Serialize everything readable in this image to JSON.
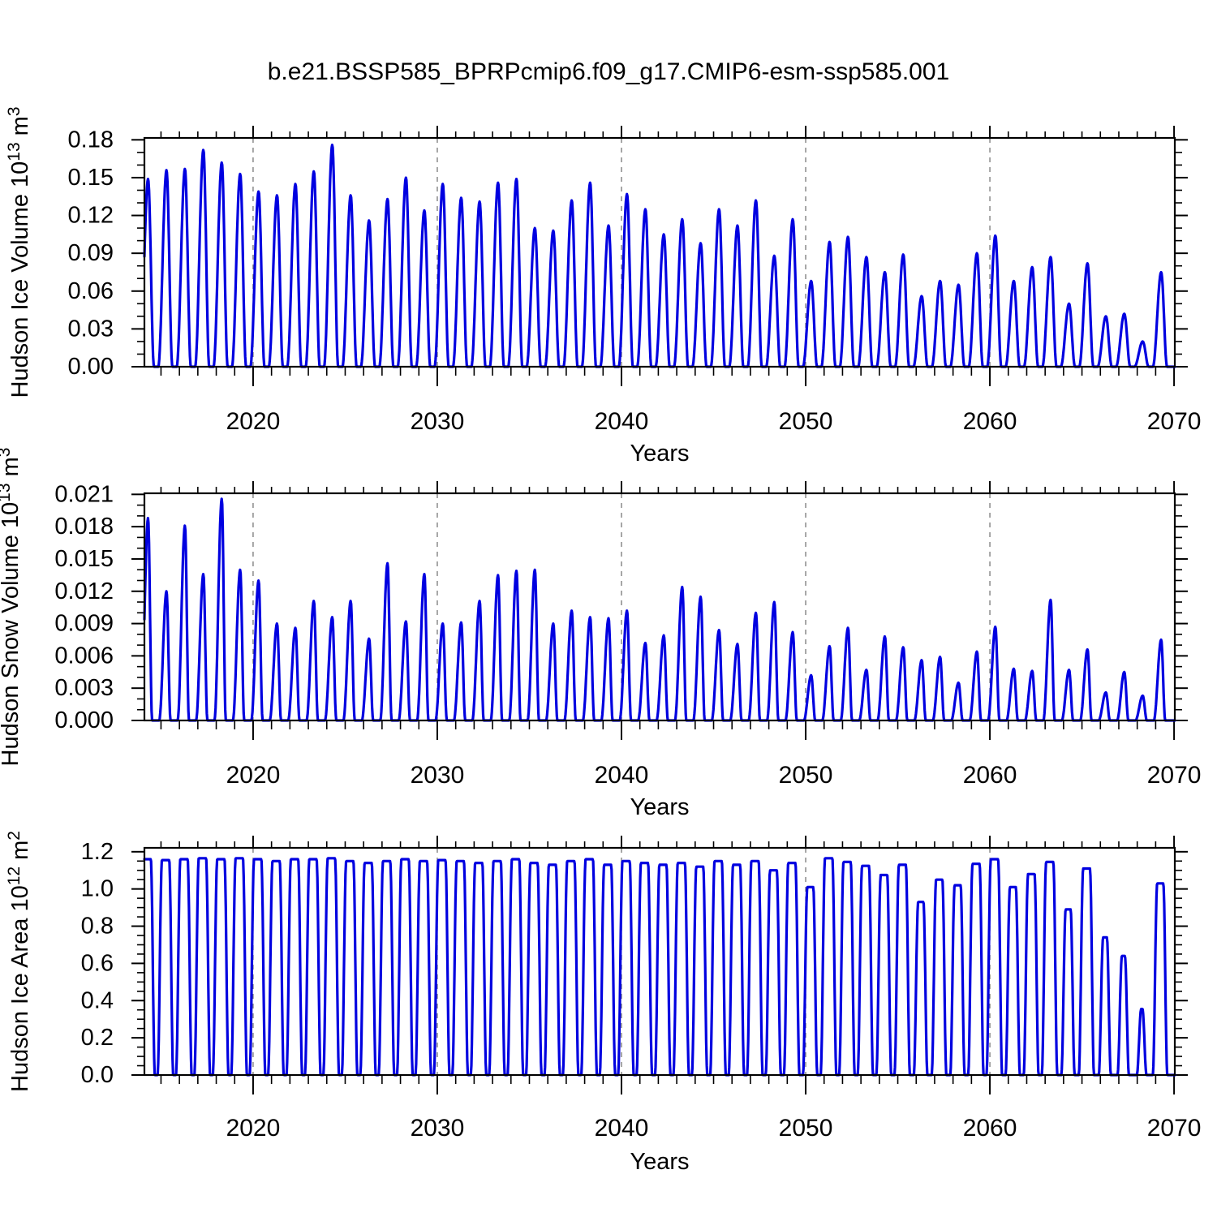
{
  "title": "b.e21.BSSP585_BPRPcmip6.f09_g17.CMIP6-esm-ssp585.001",
  "background": "#ffffff",
  "line_color": "#0000e0",
  "grid_color": "#777777",
  "axis_color": "#000000",
  "chart_data": [
    {
      "type": "line",
      "name": "hudson-ice-volume",
      "ylabel_text": "Hudson Ice Volume 10^13 m^3",
      "ylabel_segments": [
        {
          "t": "Hudson Ice Volume 10"
        },
        {
          "t": "13",
          "sup": true
        },
        {
          "t": " m"
        },
        {
          "t": "3",
          "sup": true
        }
      ],
      "xlabel": "Years",
      "x_major_ticks": [
        2020,
        2030,
        2040,
        2050,
        2060,
        2070
      ],
      "x_grid_years": [
        2020,
        2030,
        2040,
        2050,
        2060
      ],
      "xlim": [
        2014.1,
        2070.04
      ],
      "ylim": [
        0,
        0.1815
      ],
      "y_major_ticks": [
        0,
        0.03,
        0.06,
        0.09,
        0.12,
        0.15,
        0.18
      ],
      "y_tick_labels": [
        "0.00",
        "0.03",
        "0.06",
        "0.09",
        "0.12",
        "0.15",
        "0.18"
      ],
      "y_minor_step": 0.01,
      "seasonal": {
        "profile": "volume",
        "rise": 0.45,
        "fall": 0.32,
        "peak_center": 0.3
      },
      "peaks_start_year": 2014,
      "annual_peaks": [
        0.149,
        0.156,
        0.157,
        0.172,
        0.162,
        0.153,
        0.139,
        0.136,
        0.145,
        0.155,
        0.176,
        0.136,
        0.116,
        0.133,
        0.15,
        0.124,
        0.145,
        0.134,
        0.131,
        0.146,
        0.149,
        0.11,
        0.108,
        0.132,
        0.146,
        0.112,
        0.137,
        0.125,
        0.105,
        0.117,
        0.098,
        0.125,
        0.112,
        0.132,
        0.088,
        0.117,
        0.068,
        0.099,
        0.103,
        0.087,
        0.075,
        0.089,
        0.056,
        0.068,
        0.065,
        0.09,
        0.104,
        0.068,
        0.079,
        0.087,
        0.05,
        0.082,
        0.04,
        0.042,
        0.02,
        0.075
      ]
    },
    {
      "type": "line",
      "name": "hudson-snow-volume",
      "ylabel_text": "Hudson Snow Volume 10^13 m^3",
      "ylabel_segments": [
        {
          "t": "Hudson Snow Volume 10"
        },
        {
          "t": "13",
          "sup": true
        },
        {
          "t": " m"
        },
        {
          "t": "3",
          "sup": true
        }
      ],
      "xlabel": "Years",
      "x_major_ticks": [
        2020,
        2030,
        2040,
        2050,
        2060,
        2070
      ],
      "x_grid_years": [
        2020,
        2030,
        2040,
        2050,
        2060
      ],
      "xlim": [
        2014.1,
        2070.04
      ],
      "ylim": [
        0,
        0.0211
      ],
      "y_major_ticks": [
        0,
        0.003,
        0.006,
        0.009,
        0.012,
        0.015,
        0.018,
        0.021
      ],
      "y_tick_labels": [
        "0.000",
        "0.003",
        "0.006",
        "0.009",
        "0.012",
        "0.015",
        "0.018",
        "0.021"
      ],
      "y_minor_step": 0.001,
      "seasonal": {
        "profile": "volume",
        "rise": 0.4,
        "fall": 0.22,
        "peak_center": 0.3
      },
      "peaks_start_year": 2014,
      "annual_peaks": [
        0.0188,
        0.012,
        0.0181,
        0.0136,
        0.0206,
        0.014,
        0.013,
        0.009,
        0.0086,
        0.0111,
        0.0096,
        0.0111,
        0.0076,
        0.0146,
        0.0092,
        0.0136,
        0.009,
        0.0091,
        0.0111,
        0.0135,
        0.0139,
        0.014,
        0.009,
        0.0102,
        0.0096,
        0.0095,
        0.0102,
        0.0072,
        0.0079,
        0.0124,
        0.0115,
        0.0084,
        0.0071,
        0.01,
        0.011,
        0.0082,
        0.0042,
        0.0069,
        0.0086,
        0.0047,
        0.0078,
        0.0068,
        0.0056,
        0.0059,
        0.0035,
        0.0064,
        0.0087,
        0.0048,
        0.0046,
        0.0112,
        0.0047,
        0.0066,
        0.0026,
        0.0045,
        0.0023,
        0.0075
      ]
    },
    {
      "type": "line",
      "name": "hudson-ice-area",
      "ylabel_text": "Hudson Ice Area 10^12 m^2",
      "ylabel_segments": [
        {
          "t": "Hudson Ice Area 10"
        },
        {
          "t": "12",
          "sup": true
        },
        {
          "t": " m"
        },
        {
          "t": "2",
          "sup": true
        }
      ],
      "xlabel": "Years",
      "x_major_ticks": [
        2020,
        2030,
        2040,
        2050,
        2060,
        2070
      ],
      "x_grid_years": [
        2020,
        2030,
        2040,
        2050,
        2060
      ],
      "xlim": [
        2014.1,
        2070.04
      ],
      "ylim": [
        0,
        1.221
      ],
      "y_major_ticks": [
        0,
        0.2,
        0.4,
        0.6,
        0.8,
        1.0,
        1.2
      ],
      "y_tick_labels": [
        "0.0",
        "0.2",
        "0.4",
        "0.6",
        "0.8",
        "1.0",
        "1.2"
      ],
      "y_minor_step": 0.05,
      "seasonal": {
        "profile": "area",
        "rise": 0.24,
        "fall": 0.22,
        "peak_center": 0.25,
        "plateau_half": 0.2,
        "ref_max": 1.17
      },
      "peaks_start_year": 2014,
      "annual_peaks": [
        1.16,
        1.155,
        1.16,
        1.165,
        1.16,
        1.165,
        1.16,
        1.15,
        1.16,
        1.16,
        1.165,
        1.15,
        1.14,
        1.15,
        1.16,
        1.15,
        1.155,
        1.15,
        1.14,
        1.15,
        1.16,
        1.14,
        1.13,
        1.15,
        1.16,
        1.13,
        1.15,
        1.14,
        1.13,
        1.14,
        1.12,
        1.15,
        1.13,
        1.15,
        1.1,
        1.14,
        1.01,
        1.165,
        1.145,
        1.124,
        1.075,
        1.13,
        0.93,
        1.05,
        1.02,
        1.135,
        1.16,
        1.01,
        1.08,
        1.145,
        0.89,
        1.11,
        0.74,
        0.64,
        0.355,
        1.03
      ]
    }
  ]
}
